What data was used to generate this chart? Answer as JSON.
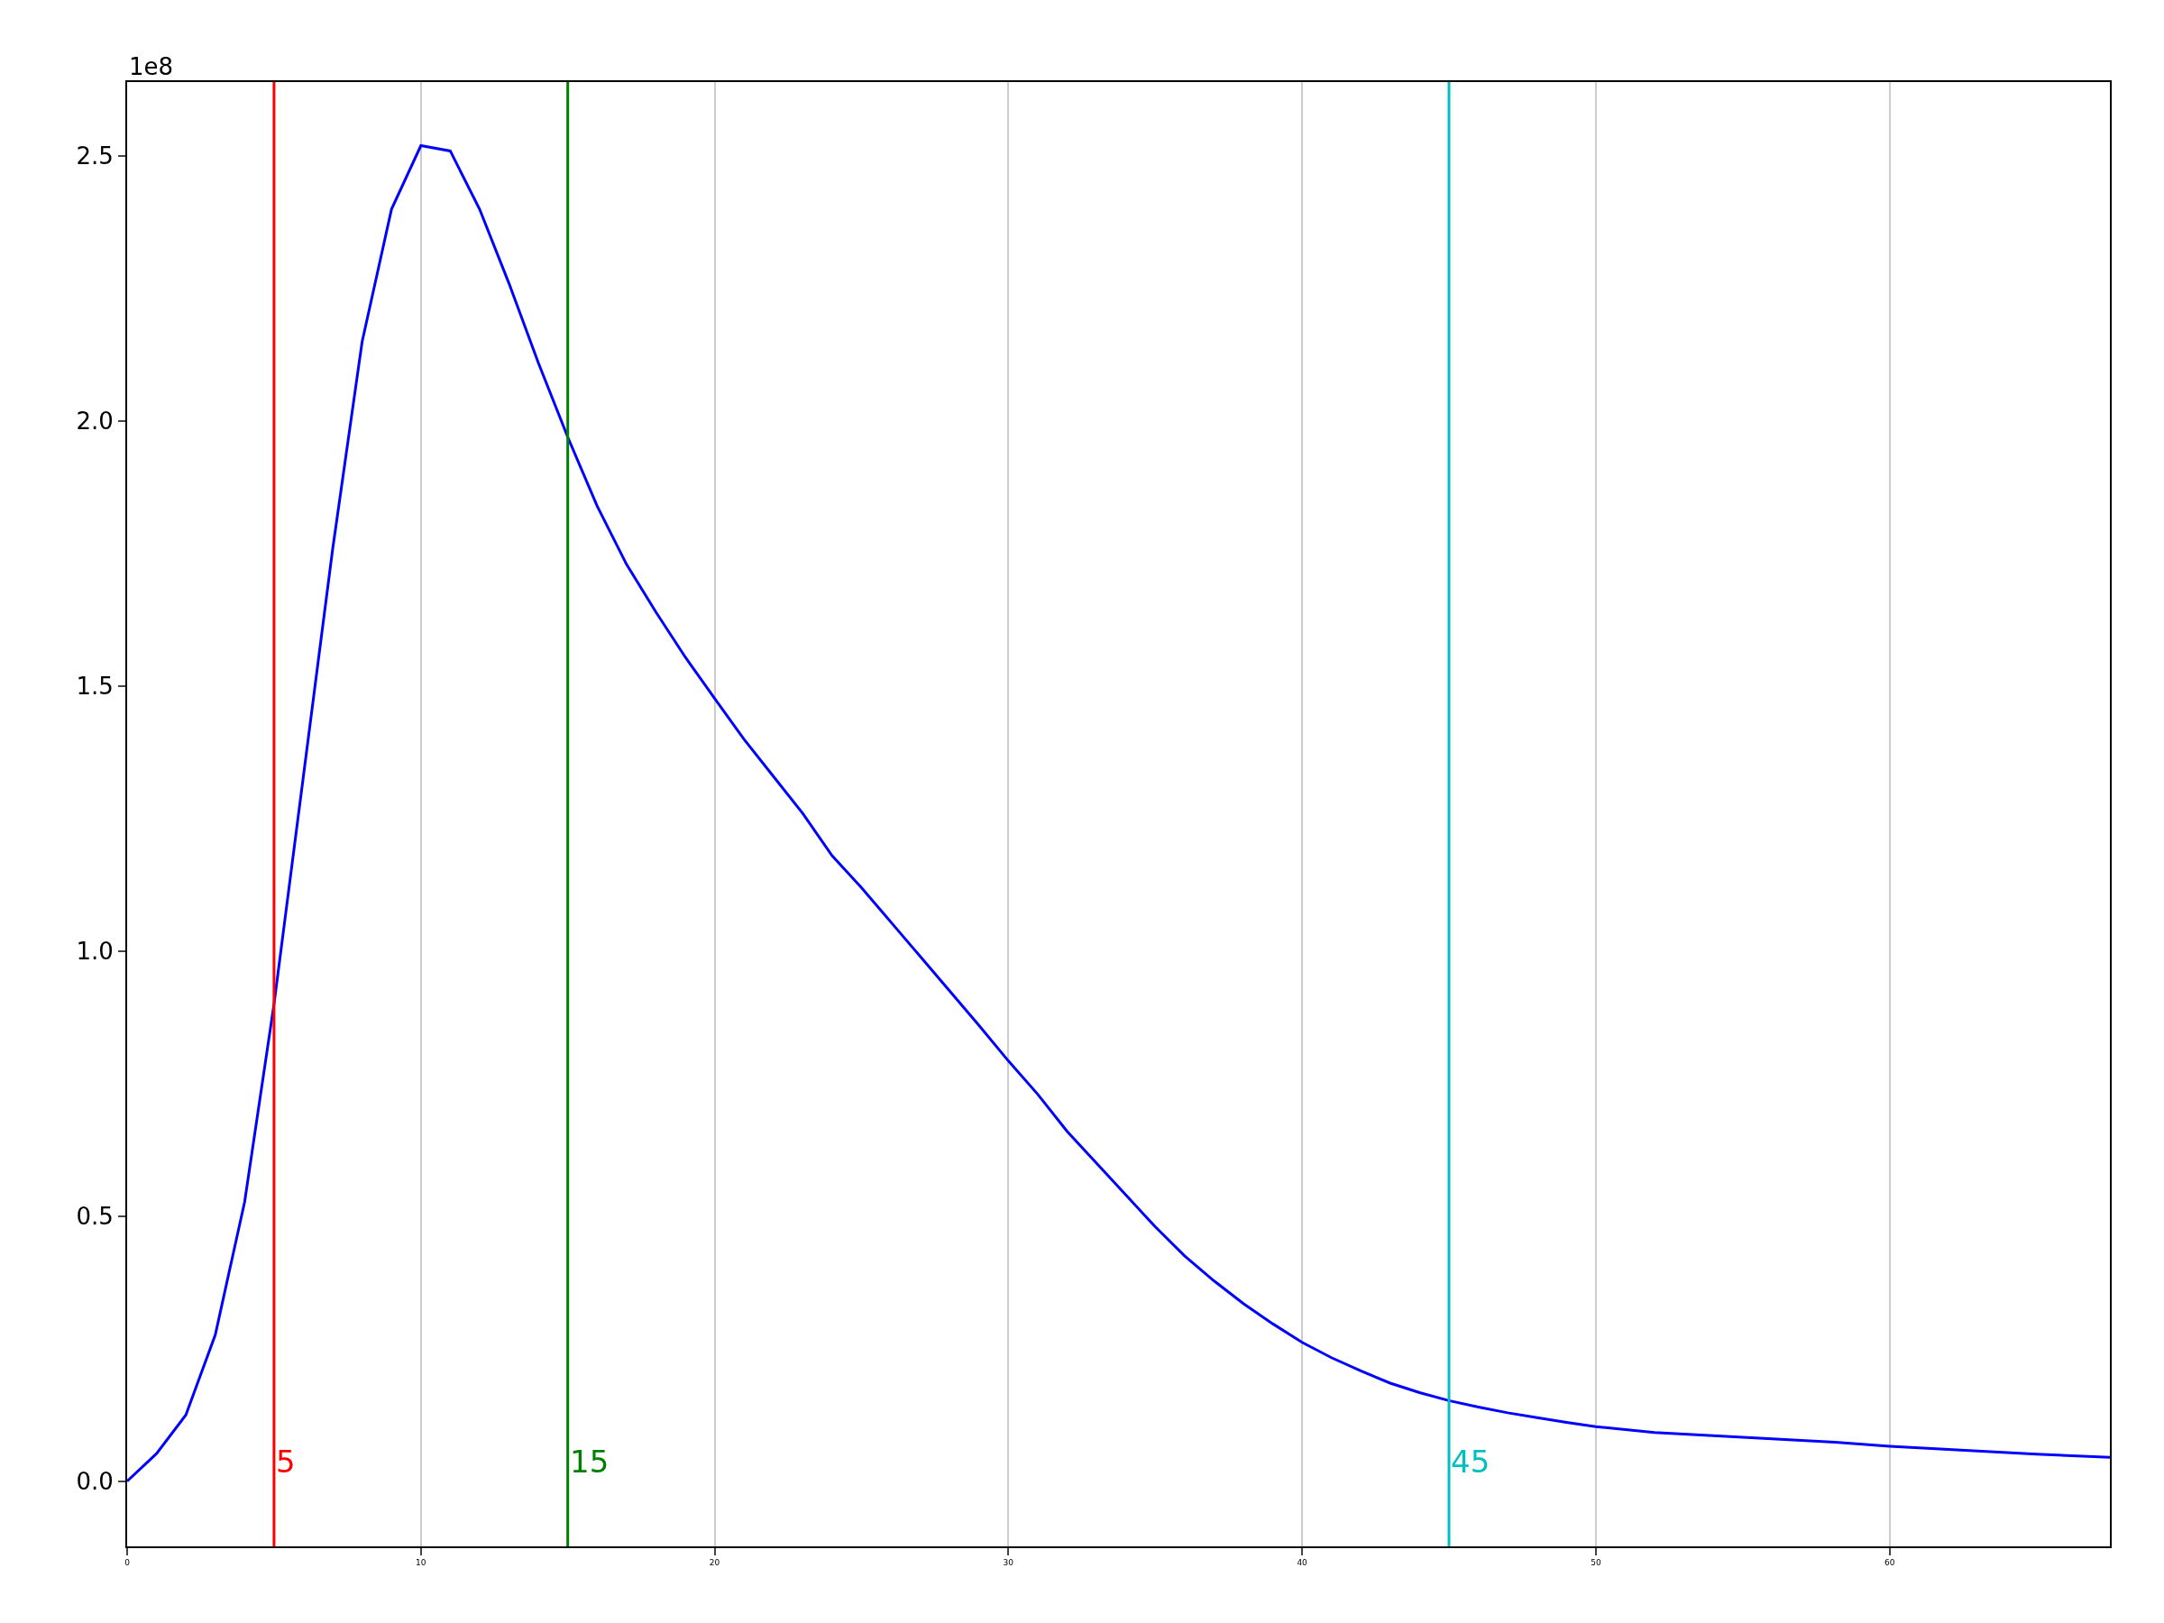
{
  "chart_data": {
    "type": "line",
    "x": [
      0,
      1,
      2,
      3,
      4,
      5,
      6,
      7,
      8,
      9,
      10,
      11,
      12,
      13,
      14,
      15,
      16,
      17,
      18,
      19,
      20,
      21,
      22,
      23,
      24,
      25,
      26,
      27,
      28,
      29,
      30,
      31,
      32,
      33,
      34,
      35,
      36,
      37,
      38,
      39,
      40,
      41,
      42,
      43,
      44,
      45,
      46,
      47,
      48,
      49,
      50,
      52,
      55,
      58,
      60,
      63,
      65,
      67.5
    ],
    "series": [
      {
        "color": "#0000ff",
        "values": [
          0,
          0.052,
          0.125,
          0.276,
          0.527,
          0.9,
          1.33,
          1.76,
          2.15,
          2.4,
          2.52,
          2.51,
          2.4,
          2.26,
          2.11,
          1.97,
          1.84,
          1.73,
          1.64,
          1.555,
          1.477,
          1.4,
          1.33,
          1.26,
          1.18,
          1.12,
          1.055,
          0.99,
          0.925,
          0.86,
          0.793,
          0.73,
          0.66,
          0.6,
          0.54,
          0.48,
          0.425,
          0.378,
          0.335,
          0.297,
          0.262,
          0.233,
          0.208,
          0.185,
          0.167,
          0.152,
          0.14,
          0.129,
          0.12,
          0.111,
          0.103,
          0.092,
          0.083,
          0.074,
          0.066,
          0.057,
          0.051,
          0.045
        ]
      }
    ],
    "xlim": [
      0,
      67.5
    ],
    "ylim": [
      -0.123,
      2.64
    ],
    "xticks": [
      0,
      10,
      20,
      30,
      40,
      50,
      60
    ],
    "yticks": [
      {
        "value": 0,
        "label": "0.0"
      },
      0.5,
      {
        "value": 1,
        "label": "1.0"
      },
      1.5,
      {
        "value": 2,
        "label": "2.0"
      },
      2.5
    ],
    "grid": "x",
    "annotations": [
      "1e8"
    ],
    "ref_lines": [
      {
        "axis": "x",
        "value": 5,
        "label": "5",
        "color": "#ff0000"
      },
      {
        "axis": "x",
        "value": 15,
        "label": "15",
        "color": "#008000"
      },
      {
        "axis": "x",
        "value": 45,
        "label": "45",
        "color": "#00bfbf"
      }
    ]
  }
}
